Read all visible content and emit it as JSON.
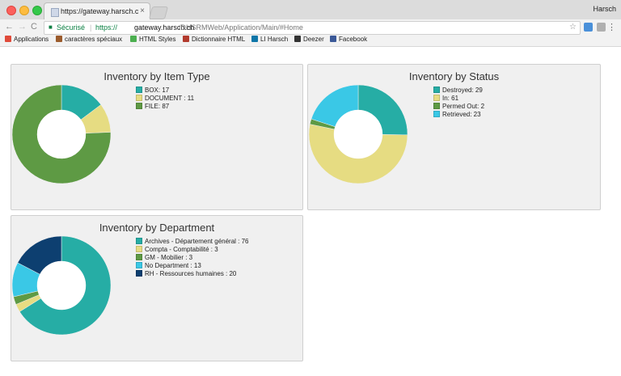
{
  "browser": {
    "tab_title": "https://gateway.harsch.ch/DHS",
    "tab_close": "×",
    "profile_name": "Harsch",
    "nav": {
      "back": "←",
      "forward": "→",
      "reload": "C"
    },
    "url": {
      "security_label": "Sécurisé",
      "separator": "|",
      "scheme": "https://",
      "host": "gateway.harsch.ch",
      "path": "/DHSRMWeb/Application/Main/#Home"
    },
    "bookmark_star": "☆",
    "menu": "⋮",
    "bookmarks": [
      {
        "label": "Applications",
        "icon": "apps-grid-icon",
        "color": "#e04a3a"
      },
      {
        "label": "caractères spéciaux",
        "icon": "paw-icon",
        "color": "#9b5b2c"
      },
      {
        "label": "HTML Styles",
        "icon": "w3-icon",
        "color": "#4caf50"
      },
      {
        "label": "Dictionnaire HTML",
        "icon": "dictionary-icon",
        "color": "#b23b2e"
      },
      {
        "label": "LI Harsch",
        "icon": "linkedin-icon",
        "color": "#0e76a8"
      },
      {
        "label": "Deezer",
        "icon": "deezer-icon",
        "color": "#333333"
      },
      {
        "label": "Facebook",
        "icon": "facebook-icon",
        "color": "#3b5998"
      }
    ]
  },
  "dashboard": {
    "panels": [
      {
        "title": "Inventory by Item Type",
        "chart_data": {
          "type": "pie",
          "title": "Inventory by Item Type",
          "categories": [
            "BOX",
            "DOCUMENT",
            "FILE"
          ],
          "values": [
            17,
            11,
            87
          ],
          "colors": [
            "#26ada5",
            "#e6dc82",
            "#5e9a44"
          ],
          "legend_labels": [
            "BOX: 17",
            "DOCUMENT : 11",
            "FILE: 87"
          ],
          "legend_position": "right"
        }
      },
      {
        "title": "Inventory by Status",
        "chart_data": {
          "type": "pie",
          "title": "Inventory by Status",
          "categories": [
            "Destroyed",
            "In",
            "Permed Out",
            "Retrieved"
          ],
          "values": [
            29,
            61,
            2,
            23
          ],
          "colors": [
            "#26ada5",
            "#e6dc82",
            "#5e9a44",
            "#3ac8e6"
          ],
          "legend_labels": [
            "Destroyed: 29",
            "In: 61",
            "Permed Out: 2",
            "Retrieved: 23"
          ],
          "legend_position": "right"
        }
      },
      {
        "title": "Inventory by Department",
        "chart_data": {
          "type": "pie",
          "title": "Inventory by Department",
          "categories": [
            "Archives - Département général",
            "Compta - Comptabilité",
            "GM - Mobilier",
            "No Department",
            "RH - Ressources humaines"
          ],
          "values": [
            76,
            3,
            3,
            13,
            20
          ],
          "colors": [
            "#26ada5",
            "#e6dc82",
            "#5e9a44",
            "#3ac8e6",
            "#0d3f70"
          ],
          "legend_labels": [
            "Archives - Département général : 76",
            "Compta - Comptabilité : 3",
            "GM - Mobilier : 3",
            "No Department : 13",
            "RH - Ressources humaines : 20"
          ],
          "legend_position": "right"
        }
      }
    ]
  }
}
